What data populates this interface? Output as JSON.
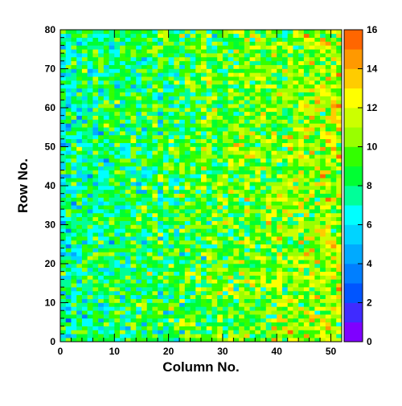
{
  "chart_data": {
    "type": "heatmap",
    "title": "",
    "xlabel": "Column No.",
    "ylabel": "Row No.",
    "xlim": [
      0,
      52
    ],
    "ylim": [
      0,
      80
    ],
    "x_ticks": [
      "0",
      "10",
      "20",
      "30",
      "40",
      "50"
    ],
    "y_ticks": [
      "0",
      "10",
      "20",
      "30",
      "40",
      "50",
      "60",
      "70",
      "80"
    ],
    "nx": 52,
    "ny": 80,
    "zlim": [
      0,
      16
    ],
    "colorbar_ticks": [
      "0",
      "2",
      "4",
      "6",
      "8",
      "10",
      "12",
      "14",
      "16"
    ],
    "colormap": [
      "#7f00ff",
      "#3f2bff",
      "#0055ff",
      "#007fff",
      "#00aaff",
      "#00d4ff",
      "#00ffff",
      "#00ff99",
      "#00ff33",
      "#33ff00",
      "#99ff00",
      "#ccff00",
      "#ffff00",
      "#ffcc00",
      "#ff9900",
      "#ff6600",
      "#ff0000"
    ],
    "trend": {
      "description_values": "cell counts mostly 6-10 at low column numbers, rising to about 10-13 at high column numbers",
      "left_mean": 7.0,
      "right_mean": 10.5,
      "noise": 2.2
    }
  }
}
